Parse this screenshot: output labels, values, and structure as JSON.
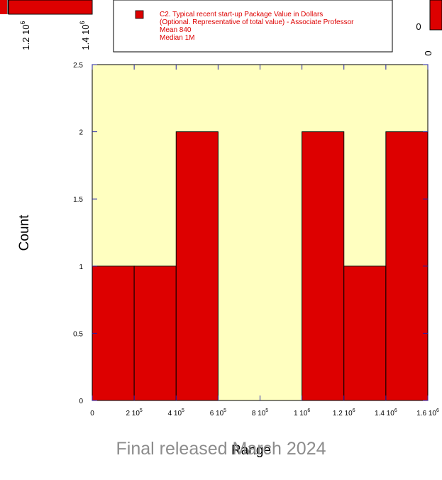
{
  "footer": "Final released March 2024",
  "colors": {
    "bar_fill": "#dd0000",
    "plot_background": "#ffffc0",
    "legend_text": "#dd0000",
    "axis": "#000000",
    "tick_mark": "#2020aa",
    "footer_text": "#8c8c8c"
  },
  "background_fragments": {
    "top_left_ticks": [
      {
        "base": "1.2 10",
        "exp": "6"
      },
      {
        "base": "1.4 10",
        "exp": "6"
      }
    ],
    "right_zero_label": "0",
    "right_rotated_zero": "0"
  },
  "chart_data": {
    "type": "bar",
    "histogram": true,
    "title": "",
    "legend": {
      "placement": "top-center",
      "lines": [
        "C2. Typical recent start-up Package Value in Dollars",
        "(Optional.  Representative of total value) - Associate Professor",
        "Mean 840",
        "Median 1M"
      ]
    },
    "xlabel": "Range",
    "ylabel": "Count",
    "xlim": [
      0,
      1600000
    ],
    "ylim": [
      0,
      2.5
    ],
    "grid": false,
    "bin_edges": [
      0,
      200000,
      400000,
      600000,
      800000,
      1000000,
      1200000,
      1400000,
      1600000
    ],
    "values": [
      1,
      1,
      2,
      0,
      0,
      2,
      1,
      2
    ],
    "x_ticks": [
      {
        "value": 0,
        "base": "0",
        "exp": ""
      },
      {
        "value": 200000,
        "base": "2 10",
        "exp": "5"
      },
      {
        "value": 400000,
        "base": "4 10",
        "exp": "5"
      },
      {
        "value": 600000,
        "base": "6 10",
        "exp": "5"
      },
      {
        "value": 800000,
        "base": "8 10",
        "exp": "5"
      },
      {
        "value": 1000000,
        "base": "1 10",
        "exp": "6"
      },
      {
        "value": 1200000,
        "base": "1.2 10",
        "exp": "6"
      },
      {
        "value": 1400000,
        "base": "1.4 10",
        "exp": "6"
      },
      {
        "value": 1600000,
        "base": "1.6 10",
        "exp": "6"
      }
    ],
    "y_ticks": [
      {
        "value": 0,
        "label": "0"
      },
      {
        "value": 0.5,
        "label": "0.5"
      },
      {
        "value": 1,
        "label": "1"
      },
      {
        "value": 1.5,
        "label": "1.5"
      },
      {
        "value": 2,
        "label": "2"
      },
      {
        "value": 2.5,
        "label": "2.5"
      }
    ]
  }
}
